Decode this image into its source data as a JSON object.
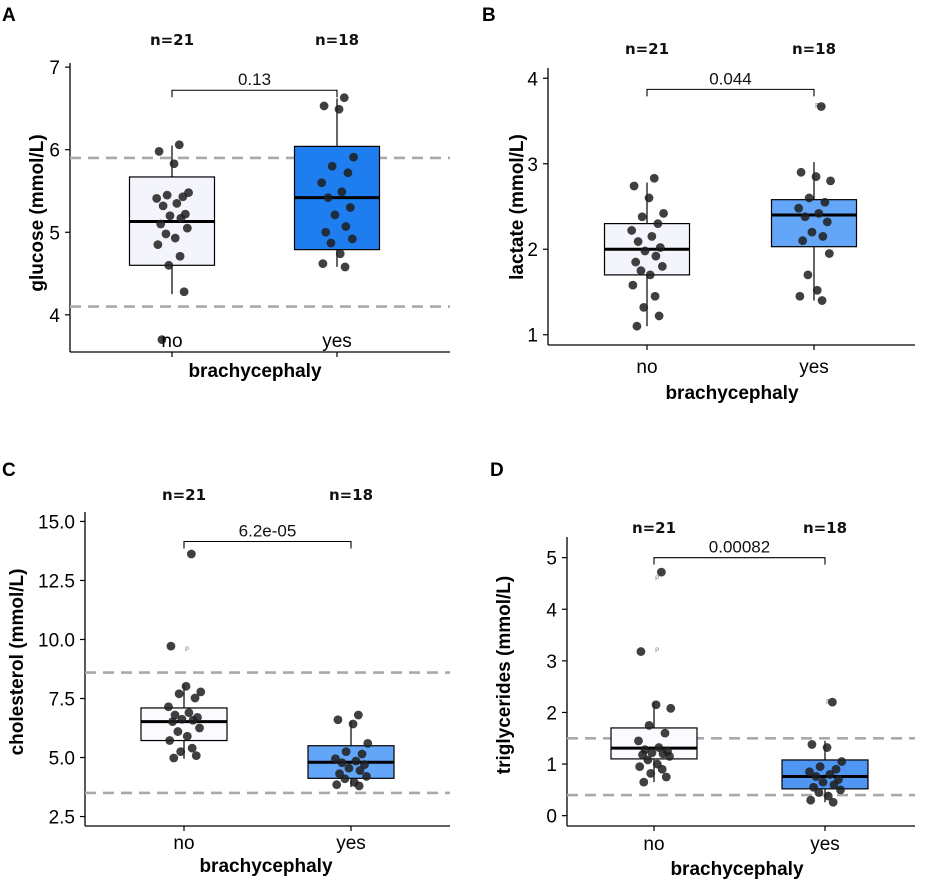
{
  "chart_data": [
    {
      "panel": "A",
      "type": "box",
      "ylabel": "glucose (mmol/L)",
      "xlabel": "brachycephaly",
      "ylim": [
        3.55,
        7.05
      ],
      "yticks": [
        4,
        5,
        6,
        7
      ],
      "ytick_labels": [
        "4",
        "5",
        "6",
        "7"
      ],
      "ref_lines": [
        4.1,
        5.9
      ],
      "pvalue": "0.13",
      "bracket_y": 6.72,
      "groups": [
        {
          "name": "no",
          "n_label": "n=21",
          "color": "#f4f4fd",
          "q1": 4.6,
          "median": 5.13,
          "q3": 5.67,
          "whisker_low": 4.25,
          "whisker_high": 6.05,
          "points": [
            6.06,
            5.98,
            5.83,
            5.48,
            5.45,
            5.43,
            5.41,
            5.35,
            5.32,
            5.22,
            5.2,
            5.17,
            5.1,
            5.05,
            4.98,
            4.93,
            4.85,
            4.71,
            4.6,
            4.28,
            3.7
          ],
          "outlier_markers": []
        },
        {
          "name": "yes",
          "n_label": "n=18",
          "color": "#1e7ef0",
          "q1": 4.79,
          "median": 5.42,
          "q3": 6.04,
          "whisker_low": 4.58,
          "whisker_high": 6.62,
          "points": [
            6.63,
            6.53,
            6.49,
            5.91,
            5.8,
            5.72,
            5.6,
            5.49,
            5.42,
            5.3,
            5.21,
            5.07,
            5.0,
            4.92,
            4.87,
            4.74,
            4.62,
            4.58
          ],
          "outlier_markers": []
        }
      ]
    },
    {
      "panel": "B",
      "type": "box",
      "ylabel": "lactate (mmol/L)",
      "xlabel": "brachycephaly",
      "ylim": [
        0.88,
        4.12
      ],
      "yticks": [
        1,
        2,
        3,
        4
      ],
      "ytick_labels": [
        "1",
        "2",
        "3",
        "4"
      ],
      "ref_lines": [],
      "pvalue": "0.044",
      "bracket_y": 3.87,
      "groups": [
        {
          "name": "no",
          "n_label": "n=21",
          "color": "#f4f4fd",
          "q1": 1.7,
          "median": 2.0,
          "q3": 2.3,
          "whisker_low": 1.1,
          "whisker_high": 2.78,
          "points": [
            2.83,
            2.74,
            2.6,
            2.42,
            2.38,
            2.3,
            2.22,
            2.15,
            2.09,
            2.02,
            1.98,
            1.92,
            1.85,
            1.8,
            1.75,
            1.7,
            1.58,
            1.45,
            1.32,
            1.22,
            1.1
          ],
          "outlier_markers": []
        },
        {
          "name": "yes",
          "n_label": "n=18",
          "color": "#63a6f7",
          "q1": 2.03,
          "median": 2.4,
          "q3": 2.58,
          "whisker_low": 1.4,
          "whisker_high": 3.02,
          "points": [
            3.67,
            2.9,
            2.85,
            2.8,
            2.6,
            2.55,
            2.48,
            2.42,
            2.38,
            2.32,
            2.2,
            2.15,
            2.1,
            1.95,
            1.7,
            1.52,
            1.45,
            1.4
          ],
          "outlier_markers": [
            3.69
          ]
        }
      ]
    },
    {
      "panel": "C",
      "type": "box",
      "ylabel": "cholesterol (mmol/L)",
      "xlabel": "brachycephaly",
      "ylim": [
        2.1,
        15.4
      ],
      "yticks": [
        2.5,
        5.0,
        7.5,
        10.0,
        12.5,
        15.0
      ],
      "ytick_labels": [
        "2.5",
        "5.0",
        "7.5",
        "10.0",
        "12.5",
        "15.0"
      ],
      "ref_lines": [
        3.5,
        8.6
      ],
      "pvalue": "6.2e-05",
      "bracket_y": 14.15,
      "groups": [
        {
          "name": "no",
          "n_label": "n=21",
          "color": "#fbfbff",
          "q1": 5.72,
          "median": 6.52,
          "q3": 7.1,
          "whisker_low": 4.95,
          "whisker_high": 8.1,
          "points": [
            13.62,
            9.72,
            8.02,
            7.78,
            7.7,
            7.52,
            7.15,
            6.9,
            6.8,
            6.7,
            6.62,
            6.58,
            6.52,
            6.25,
            6.1,
            5.9,
            5.72,
            5.4,
            5.25,
            5.08,
            4.98
          ],
          "outlier_markers": [
            9.62
          ]
        },
        {
          "name": "yes",
          "n_label": "n=18",
          "color": "#63a6f7",
          "q1": 4.12,
          "median": 4.8,
          "q3": 5.5,
          "whisker_low": 3.75,
          "whisker_high": 6.55,
          "points": [
            6.8,
            6.6,
            6.42,
            5.6,
            5.25,
            5.15,
            4.95,
            4.85,
            4.78,
            4.7,
            4.55,
            4.45,
            4.32,
            4.2,
            4.1,
            3.95,
            3.85,
            3.8
          ],
          "outlier_markers": []
        }
      ]
    },
    {
      "panel": "D",
      "type": "box",
      "ylabel": "triglycerides (mmol/L)",
      "xlabel": "brachycephaly",
      "ylim": [
        -0.2,
        5.4
      ],
      "yticks": [
        0,
        1,
        2,
        3,
        4,
        5
      ],
      "ytick_labels": [
        "0",
        "1",
        "2",
        "3",
        "4",
        "5"
      ],
      "ref_lines": [
        0.4,
        1.5
      ],
      "pvalue": "0.00082",
      "bracket_y": 5.0,
      "groups": [
        {
          "name": "no",
          "n_label": "n=21",
          "color": "#fbfbff",
          "q1": 1.1,
          "median": 1.31,
          "q3": 1.7,
          "whisker_low": 0.65,
          "whisker_high": 2.2,
          "points": [
            4.72,
            3.18,
            2.15,
            2.08,
            1.75,
            1.6,
            1.45,
            1.32,
            1.28,
            1.25,
            1.22,
            1.2,
            1.18,
            1.15,
            1.08,
            1.0,
            0.95,
            0.9,
            0.82,
            0.75,
            0.65
          ],
          "outlier_markers": [
            4.62,
            3.22
          ]
        },
        {
          "name": "yes",
          "n_label": "n=18",
          "color": "#4f95f2",
          "q1": 0.52,
          "median": 0.76,
          "q3": 1.08,
          "whisker_low": 0.26,
          "whisker_high": 1.45,
          "points": [
            2.2,
            1.38,
            1.32,
            1.05,
            0.95,
            0.9,
            0.85,
            0.8,
            0.76,
            0.7,
            0.65,
            0.6,
            0.55,
            0.5,
            0.45,
            0.38,
            0.3,
            0.26
          ],
          "outlier_markers": [
            2.22,
            0.42
          ]
        }
      ]
    }
  ]
}
